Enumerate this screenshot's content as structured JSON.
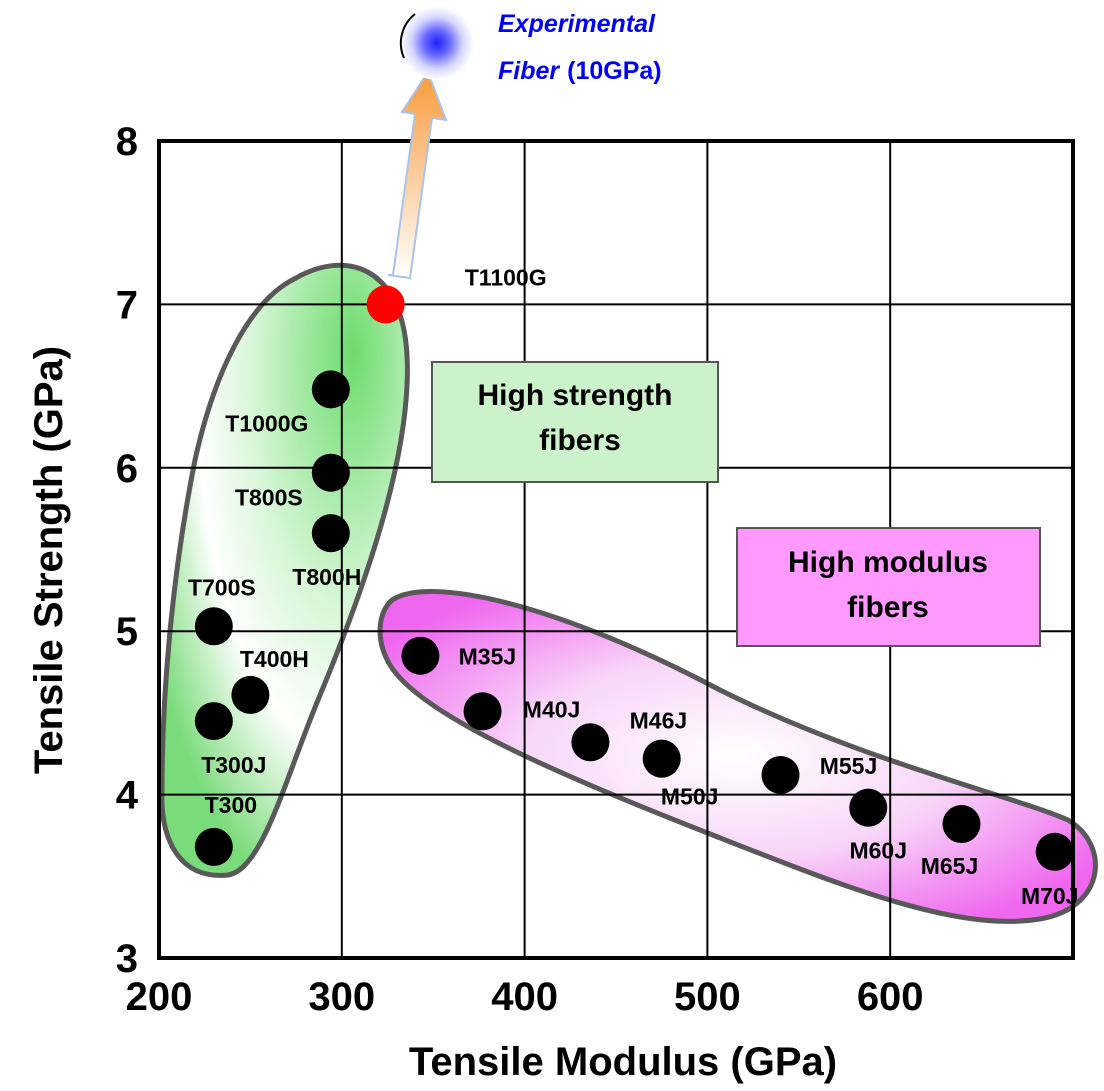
{
  "chart_data": {
    "type": "scatter",
    "title": "",
    "xlabel": "Tensile Modulus (GPa)",
    "ylabel": "Tensile Strength (GPa)",
    "xlim": [
      200,
      700
    ],
    "ylim": [
      3,
      8
    ],
    "x_ticks": [
      "200",
      "300",
      "400",
      "500",
      "600"
    ],
    "y_ticks": [
      "3",
      "4",
      "5",
      "6",
      "7",
      "8"
    ],
    "grid": true,
    "series": [
      {
        "name": "High strength fibers",
        "color": "#000000",
        "points": [
          {
            "label": "T300",
            "x": 230,
            "y": 3.68
          },
          {
            "label": "T300J",
            "x": 230,
            "y": 4.45
          },
          {
            "label": "T400H",
            "x": 250,
            "y": 4.61
          },
          {
            "label": "T700S",
            "x": 230,
            "y": 5.03
          },
          {
            "label": "T800H",
            "x": 294,
            "y": 5.6
          },
          {
            "label": "T800S",
            "x": 294,
            "y": 5.97
          },
          {
            "label": "T1000G",
            "x": 294,
            "y": 6.48
          }
        ]
      },
      {
        "name": "High modulus fibers",
        "color": "#000000",
        "points": [
          {
            "label": "M35J",
            "x": 343,
            "y": 4.85
          },
          {
            "label": "M40J",
            "x": 377,
            "y": 4.51
          },
          {
            "label": "M46J",
            "x": 436,
            "y": 4.32
          },
          {
            "label": "M50J",
            "x": 475,
            "y": 4.22
          },
          {
            "label": "M55J",
            "x": 540,
            "y": 4.12
          },
          {
            "label": "M60J",
            "x": 588,
            "y": 3.92
          },
          {
            "label": "M65J",
            "x": 639,
            "y": 3.82
          },
          {
            "label": "M70J",
            "x": 690,
            "y": 3.65
          }
        ]
      },
      {
        "name": "",
        "color": "#ff0000",
        "points": [
          {
            "label": "T1100G",
            "x": 324,
            "y": 7.0
          }
        ]
      }
    ],
    "annotations": {
      "high_strength_box": {
        "line1": "High strength",
        "line2": "fibers",
        "fill": "#ccf2cc"
      },
      "high_modulus_box": {
        "line1": "High modulus",
        "line2": "fibers",
        "fill": "#ff99ff"
      },
      "experimental": {
        "word1": "Experimental",
        "word2": "Fiber",
        "value": "(10GPa)",
        "color": "#0000ff"
      }
    }
  }
}
